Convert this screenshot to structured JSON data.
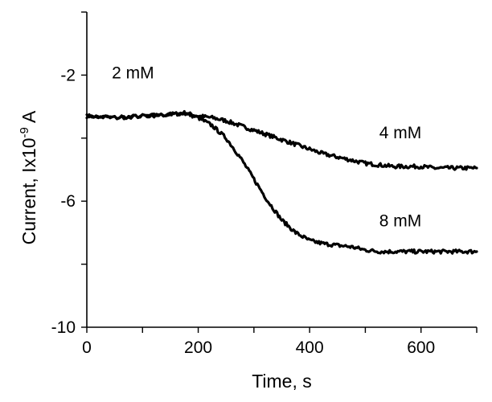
{
  "chart_data": {
    "type": "line",
    "title": "",
    "xlabel": "Time, s",
    "ylabel_main": "Current, Ix10",
    "ylabel_exp": "-9",
    "ylabel_unit": " A",
    "xlim": [
      0,
      700
    ],
    "ylim": [
      -10,
      0
    ],
    "x_ticks": [
      0,
      200,
      400,
      600
    ],
    "x_minor_step": 100,
    "y_ticks": [
      -2,
      -6,
      -10
    ],
    "y_minor_step": 2,
    "grid": false,
    "legend": "none",
    "annotations": [
      {
        "text": "2 mM",
        "x": 45,
        "y": -2.1
      },
      {
        "text": "4 mM",
        "x": 525,
        "y": -4.0
      },
      {
        "text": "8 mM",
        "x": 525,
        "y": -6.8
      }
    ],
    "series": [
      {
        "label": "4 mM",
        "x": [
          0,
          50,
          100,
          150,
          175,
          200,
          225,
          250,
          275,
          300,
          325,
          350,
          375,
          400,
          425,
          450,
          475,
          500,
          525,
          550,
          575,
          600,
          625,
          650,
          675,
          700
        ],
        "y": [
          -3.3,
          -3.35,
          -3.3,
          -3.25,
          -3.2,
          -3.3,
          -3.35,
          -3.45,
          -3.6,
          -3.75,
          -3.9,
          -4.05,
          -4.2,
          -4.35,
          -4.5,
          -4.6,
          -4.7,
          -4.8,
          -4.85,
          -4.9,
          -4.9,
          -4.9,
          -4.95,
          -4.95,
          -4.95,
          -4.95
        ]
      },
      {
        "label": "8 mM",
        "x": [
          0,
          50,
          100,
          150,
          175,
          200,
          225,
          250,
          275,
          300,
          325,
          350,
          375,
          400,
          425,
          450,
          475,
          500,
          525,
          550,
          575,
          600,
          625,
          650,
          675,
          700
        ],
        "y": [
          -3.3,
          -3.35,
          -3.3,
          -3.25,
          -3.2,
          -3.35,
          -3.6,
          -4.0,
          -4.6,
          -5.3,
          -6.0,
          -6.6,
          -7.0,
          -7.25,
          -7.35,
          -7.4,
          -7.45,
          -7.55,
          -7.6,
          -7.6,
          -7.6,
          -7.6,
          -7.6,
          -7.6,
          -7.6,
          -7.6
        ]
      }
    ]
  }
}
